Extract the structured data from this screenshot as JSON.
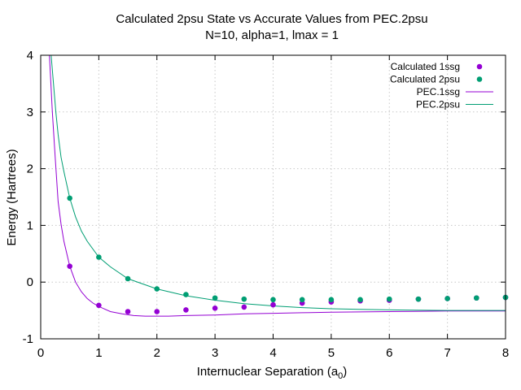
{
  "chart_data": {
    "type": "scatter",
    "title": "Calculated 2psu State vs Accurate Values from PEC.2psu",
    "subtitle": "N=10, alpha=1, lmax = 1",
    "xlabel": "Internuclear Separation (a",
    "xlabel_sub": "0",
    "xlabel_suffix": ")",
    "ylabel": "Energy (Hartrees)",
    "xlim": [
      0,
      8
    ],
    "ylim": [
      -1,
      4
    ],
    "xticks": [
      0,
      1,
      2,
      3,
      4,
      5,
      6,
      7,
      8
    ],
    "yticks": [
      -1,
      0,
      1,
      2,
      3,
      4
    ],
    "grid": true,
    "legend_position": "top-right",
    "series": [
      {
        "name": "Calculated 1ssg",
        "kind": "points",
        "color": "#9400d3",
        "x": [
          0.5,
          1.0,
          1.5,
          2.0,
          2.5,
          3.0,
          3.5,
          4.0,
          4.5,
          5.0,
          5.5,
          6.0,
          6.5,
          7.0,
          7.5,
          8.0
        ],
        "y": [
          0.28,
          -0.41,
          -0.52,
          -0.52,
          -0.49,
          -0.46,
          -0.44,
          -0.4,
          -0.37,
          -0.35,
          -0.33,
          -0.32,
          -0.3,
          -0.29,
          -0.28,
          -0.27
        ]
      },
      {
        "name": "Calculated 2psu",
        "kind": "points",
        "color": "#009e73",
        "x": [
          0.5,
          1.0,
          1.5,
          2.0,
          2.5,
          3.0,
          3.5,
          4.0,
          4.5,
          5.0,
          5.5,
          6.0,
          6.5,
          7.0,
          7.5,
          8.0
        ],
        "y": [
          1.48,
          0.44,
          0.06,
          -0.12,
          -0.22,
          -0.28,
          -0.3,
          -0.31,
          -0.31,
          -0.31,
          -0.31,
          -0.3,
          -0.3,
          -0.29,
          -0.28,
          -0.27
        ]
      },
      {
        "name": "PEC.1ssg",
        "kind": "line",
        "color": "#9400d3",
        "x": [
          0.15,
          0.2,
          0.25,
          0.3,
          0.35,
          0.4,
          0.5,
          0.6,
          0.7,
          0.8,
          0.9,
          1.0,
          1.2,
          1.4,
          1.6,
          1.8,
          2.0,
          2.2,
          2.5,
          3.0,
          3.5,
          4.0,
          4.5,
          5.0,
          6.0,
          7.0,
          8.0
        ],
        "y": [
          4.0,
          3.0,
          2.2,
          1.42,
          1.02,
          0.72,
          0.28,
          0.0,
          -0.17,
          -0.29,
          -0.37,
          -0.43,
          -0.52,
          -0.56,
          -0.59,
          -0.6,
          -0.6,
          -0.6,
          -0.59,
          -0.58,
          -0.56,
          -0.55,
          -0.54,
          -0.53,
          -0.52,
          -0.51,
          -0.51
        ]
      },
      {
        "name": "PEC.2psu",
        "kind": "line",
        "color": "#009e73",
        "x": [
          0.18,
          0.22,
          0.26,
          0.3,
          0.35,
          0.4,
          0.5,
          0.6,
          0.7,
          0.8,
          1.0,
          1.2,
          1.5,
          2.0,
          2.5,
          3.0,
          3.5,
          4.0,
          4.5,
          5.0,
          5.5,
          6.0,
          7.0,
          8.0
        ],
        "y": [
          4.0,
          3.5,
          3.0,
          2.6,
          2.2,
          1.95,
          1.48,
          1.15,
          0.9,
          0.72,
          0.44,
          0.27,
          0.06,
          -0.12,
          -0.24,
          -0.32,
          -0.38,
          -0.42,
          -0.45,
          -0.47,
          -0.48,
          -0.49,
          -0.5,
          -0.5
        ]
      }
    ]
  }
}
